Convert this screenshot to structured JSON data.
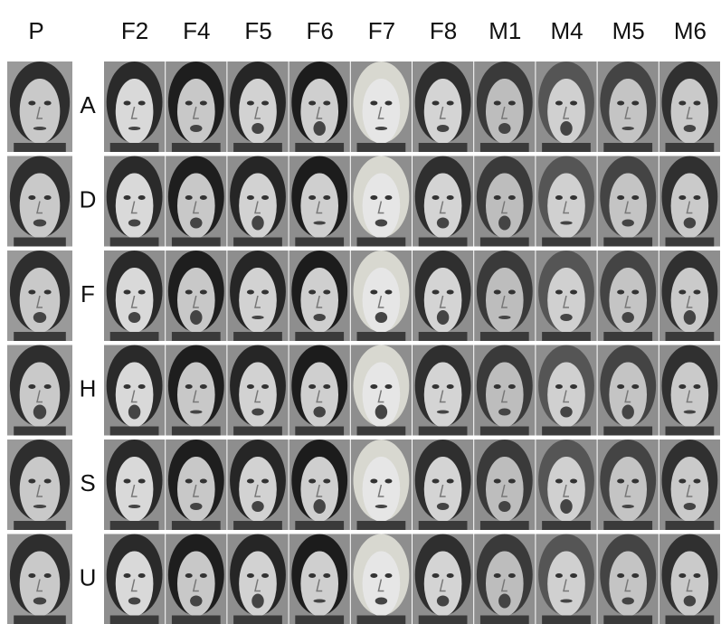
{
  "header": {
    "reference": "P",
    "columns": [
      "F2",
      "F4",
      "F5",
      "F6",
      "F7",
      "F8",
      "M1",
      "M4",
      "M5",
      "M6"
    ]
  },
  "rows": [
    {
      "label": "A"
    },
    {
      "label": "D"
    },
    {
      "label": "F"
    },
    {
      "label": "H"
    },
    {
      "label": "S"
    },
    {
      "label": "U"
    }
  ]
}
